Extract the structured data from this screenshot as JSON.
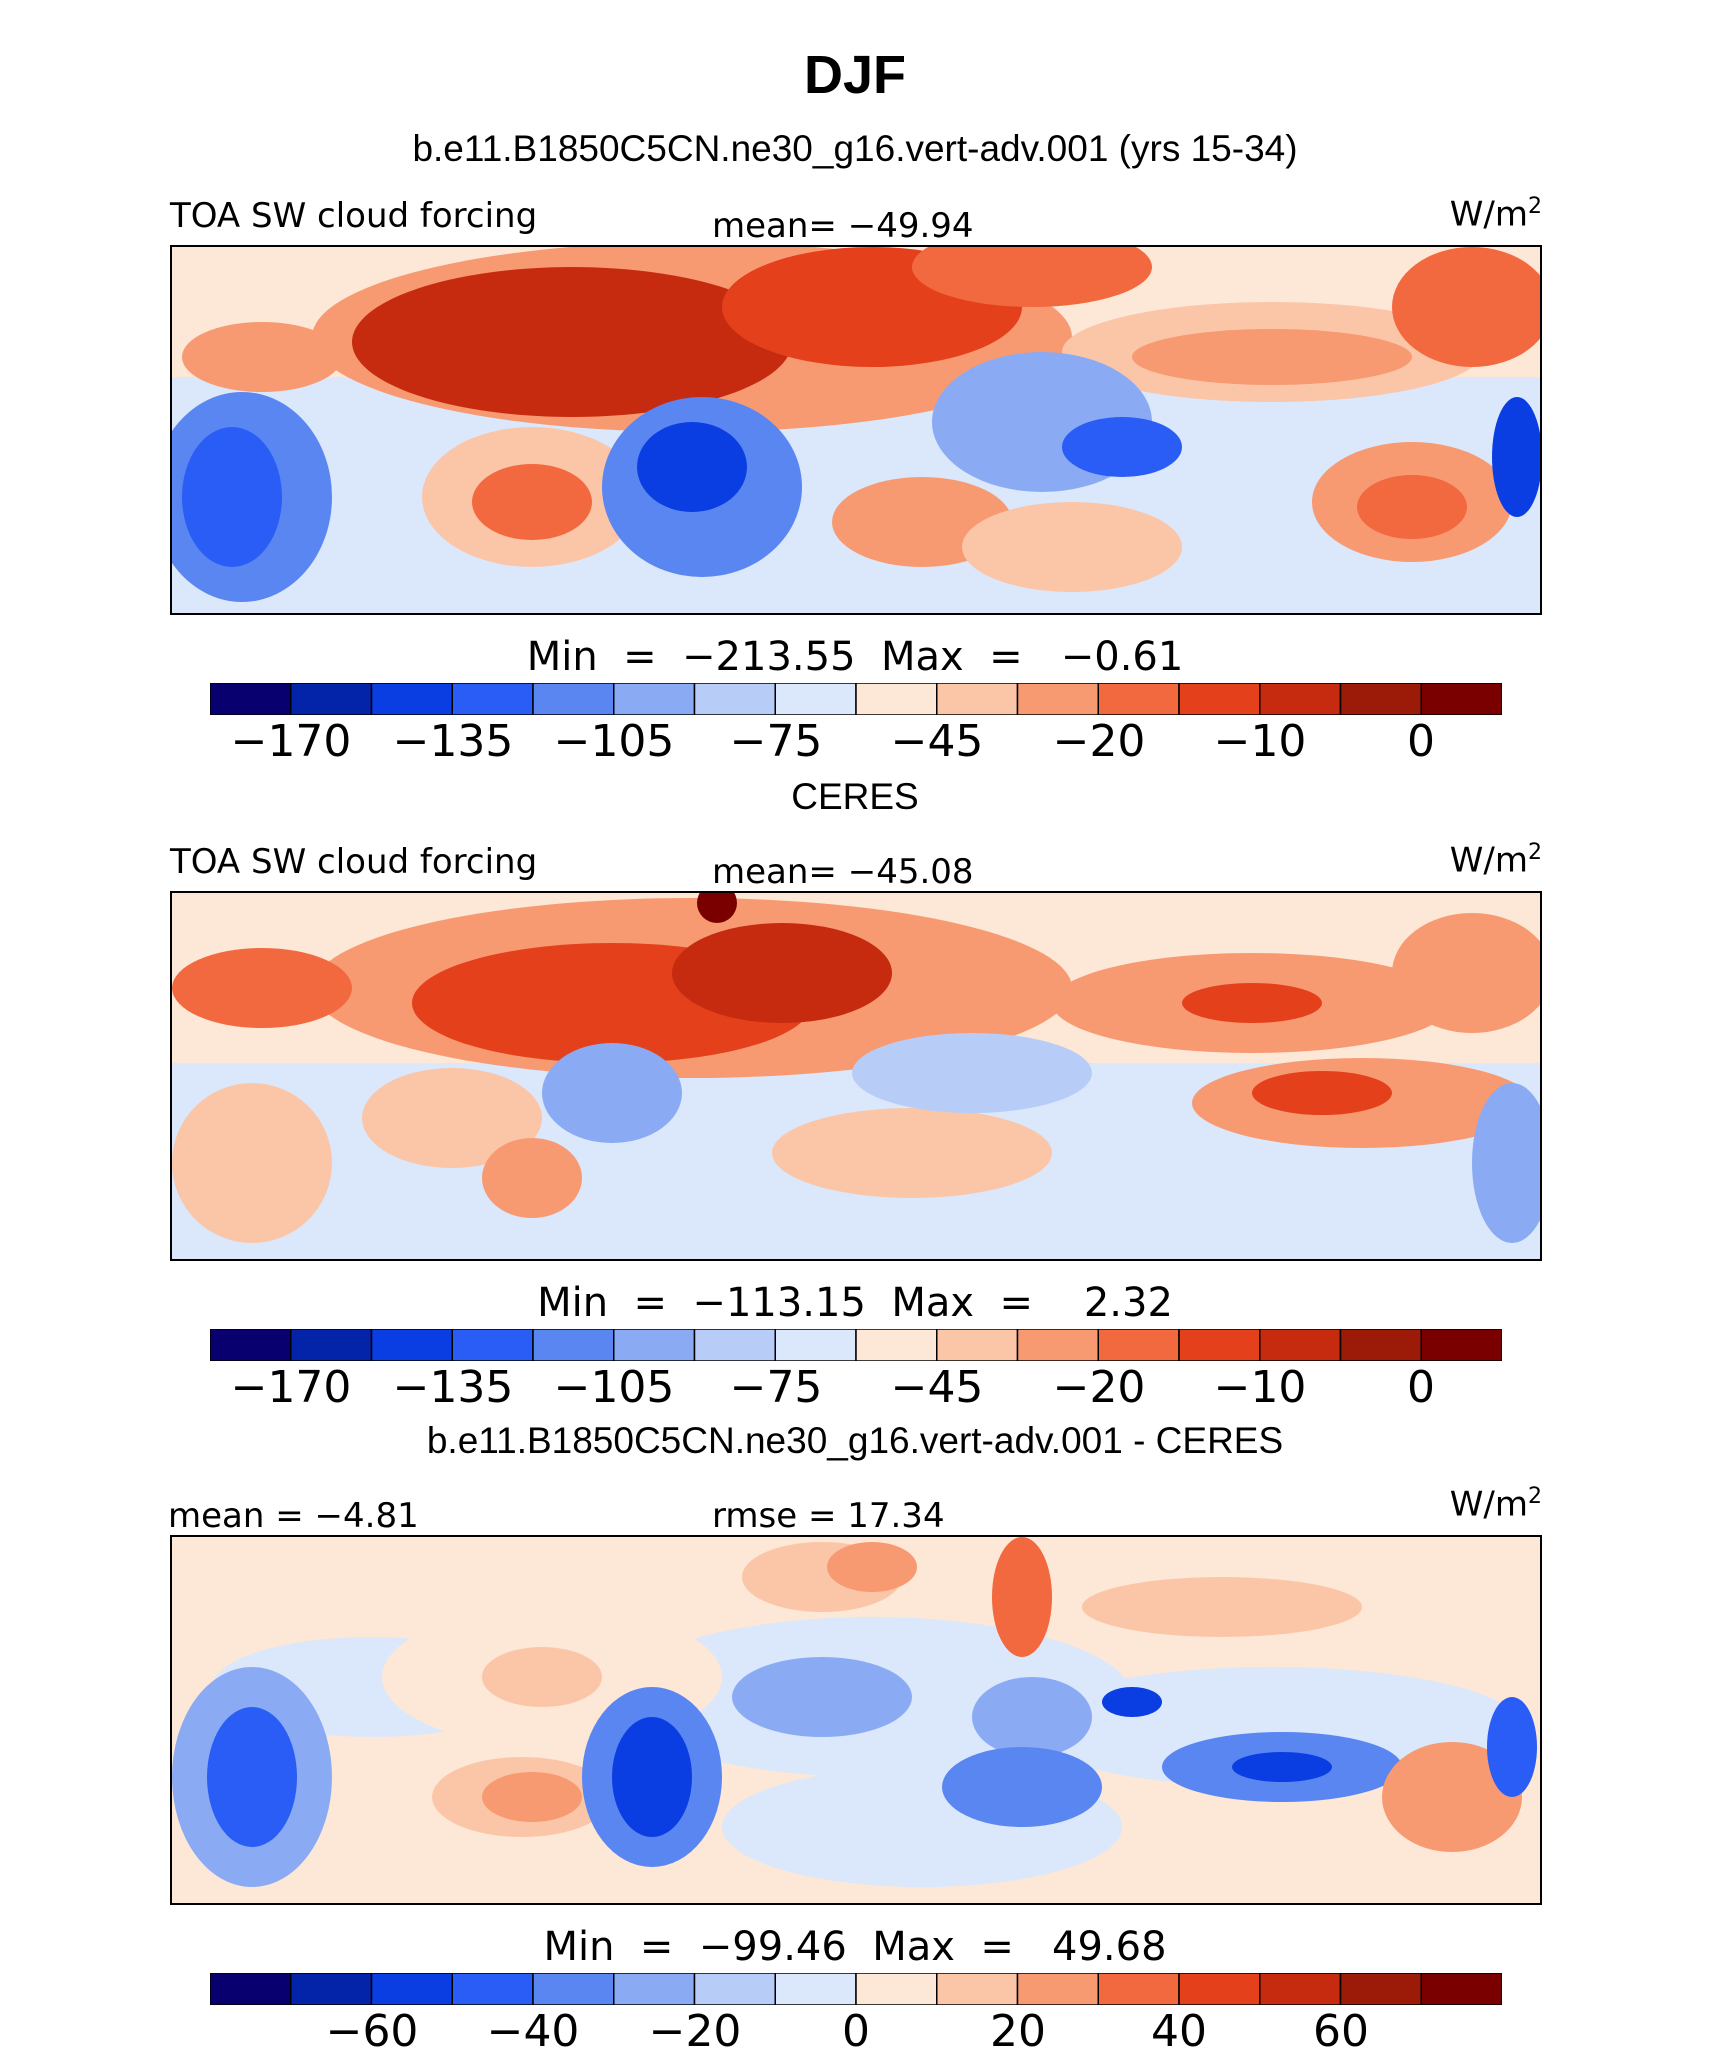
{
  "title": "DJF",
  "palette": [
    "#08006e",
    "#0324a8",
    "#0a3ee3",
    "#2a5df5",
    "#5a86f2",
    "#8aabf4",
    "#b8ccf8",
    "#dbe7fb",
    "#fde7d6",
    "#fbc6a8",
    "#f79a72",
    "#f2693f",
    "#e3401b",
    "#c62b10",
    "#9c1a08",
    "#7a0000"
  ],
  "panels": [
    {
      "id": "model",
      "subtitle": "b.e11.B1850C5CN.ne30_g16.vert-adv.001 (yrs 15-34)",
      "left_label": "TOA SW cloud forcing",
      "center_label": "mean= −49.94",
      "units": "W/m",
      "units_exp": "2",
      "minmax": "Min  =  −213.55  Max  =   −0.61",
      "colorbar_ticks": [
        "−170",
        "−135",
        "−105",
        "−75",
        "−45",
        "−20",
        "−10",
        "0"
      ]
    },
    {
      "id": "obs",
      "subtitle": "CERES",
      "left_label": "TOA SW cloud forcing",
      "center_label": "mean= −45.08",
      "units": "W/m",
      "units_exp": "2",
      "minmax": "Min  =  −113.15  Max  =    2.32",
      "colorbar_ticks": [
        "−170",
        "−135",
        "−105",
        "−75",
        "−45",
        "−20",
        "−10",
        "0"
      ]
    },
    {
      "id": "diff",
      "subtitle": "b.e11.B1850C5CN.ne30_g16.vert-adv.001 - CERES",
      "left_label": "mean  =   −4.81",
      "center_label": "rmse  =   17.34",
      "units": "W/m",
      "units_exp": "2",
      "minmax": "Min  =  −99.46  Max  =   49.68",
      "colorbar_ticks": [
        "−60",
        "−40",
        "−20",
        "0",
        "20",
        "40",
        "60"
      ]
    }
  ],
  "chart_data": [
    {
      "type": "heatmap",
      "title": "b.e11.B1850C5CN.ne30_g16.vert-adv.001 (yrs 15-34)",
      "variable": "TOA SW cloud forcing",
      "units": "W/m2",
      "mean": -49.94,
      "min": -213.55,
      "max": -0.61,
      "colorbar_levels": [
        -170,
        -135,
        -105,
        -75,
        -45,
        -20,
        -10,
        0
      ]
    },
    {
      "type": "heatmap",
      "title": "CERES",
      "variable": "TOA SW cloud forcing",
      "units": "W/m2",
      "mean": -45.08,
      "min": -113.15,
      "max": 2.32,
      "colorbar_levels": [
        -170,
        -135,
        -105,
        -75,
        -45,
        -20,
        -10,
        0
      ]
    },
    {
      "type": "heatmap",
      "title": "b.e11.B1850C5CN.ne30_g16.vert-adv.001 - CERES",
      "units": "W/m2",
      "mean": -4.81,
      "rmse": 17.34,
      "min": -99.46,
      "max": 49.68,
      "colorbar_levels": [
        -60,
        -40,
        -20,
        0,
        20,
        40,
        60
      ]
    }
  ]
}
